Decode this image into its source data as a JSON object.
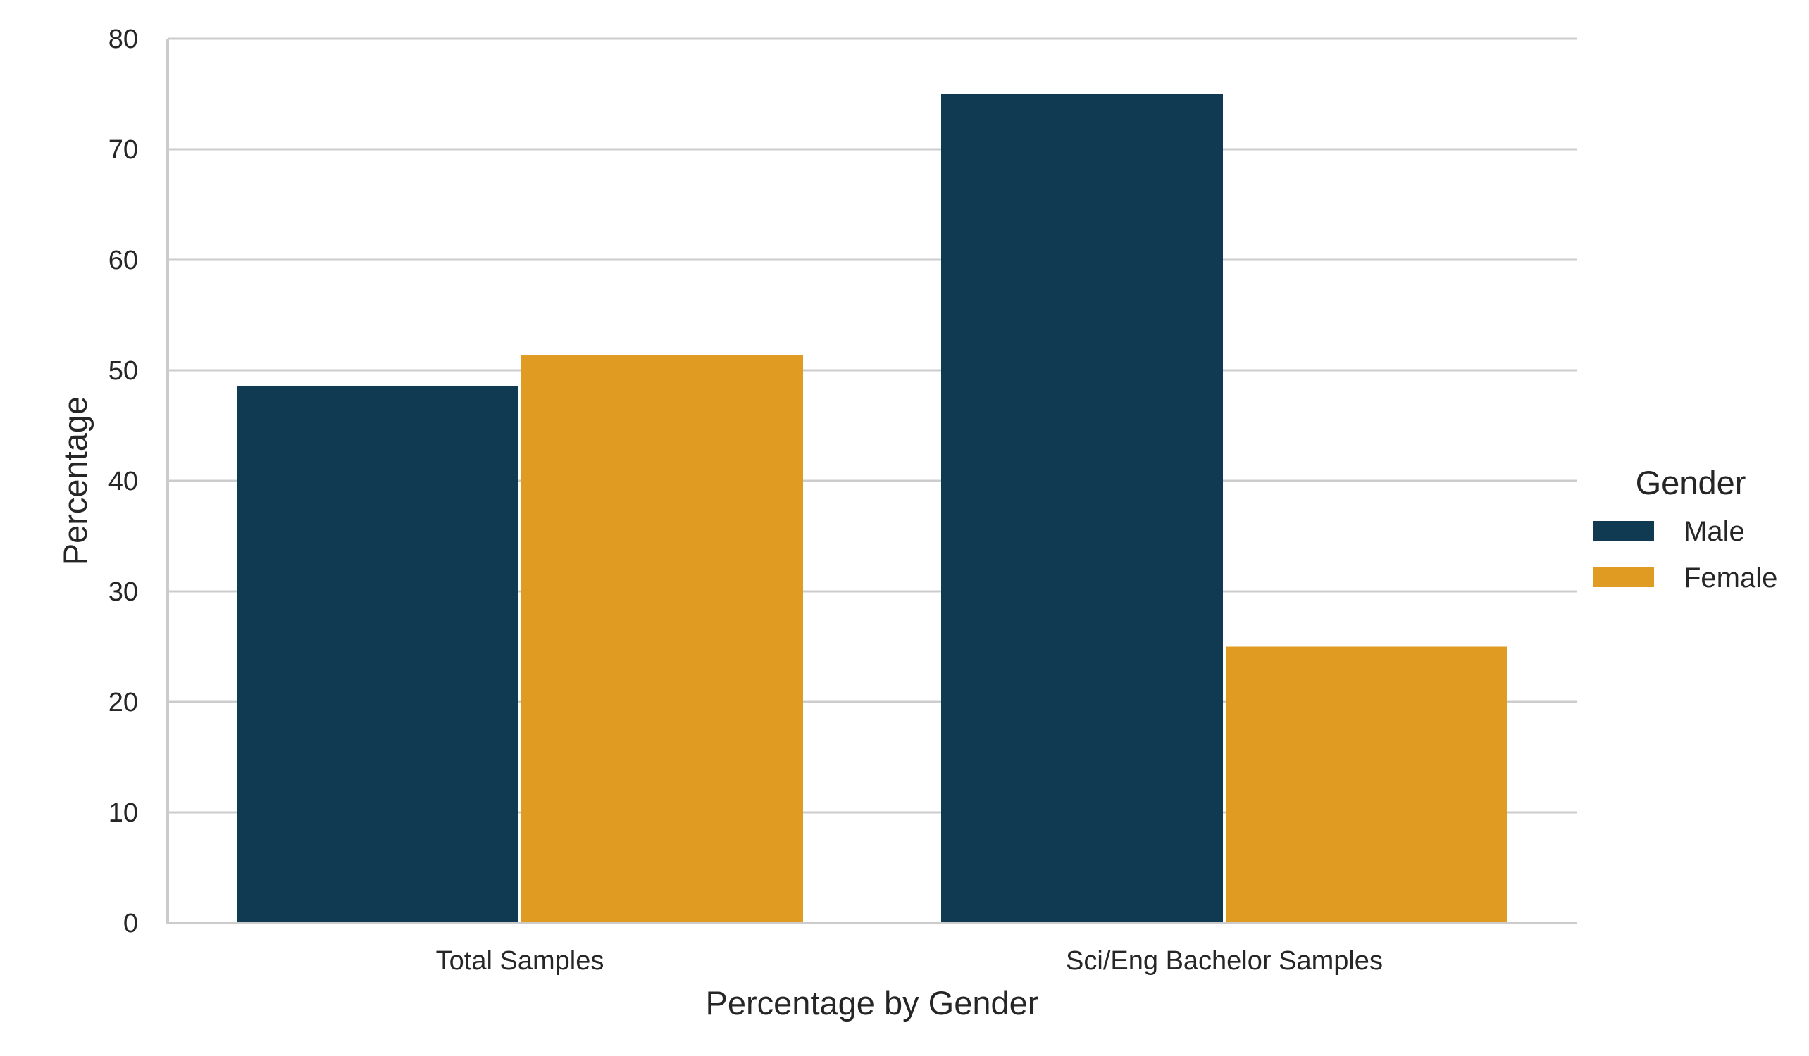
{
  "chart_data": {
    "type": "bar",
    "title": "",
    "xlabel": "Percentage by Gender",
    "ylabel": "Percentage",
    "categories": [
      "Total Samples",
      "Sci/Eng Bachelor Samples"
    ],
    "series": [
      {
        "name": "Male",
        "values": [
          48.6,
          75.0
        ],
        "color": "#0f3a52"
      },
      {
        "name": "Female",
        "values": [
          51.4,
          25.0
        ],
        "color": "#e09c22"
      }
    ],
    "ylim": [
      0,
      80
    ],
    "yticks": [
      0,
      10,
      20,
      30,
      40,
      50,
      60,
      70,
      80
    ],
    "grid": "horizontal",
    "legend": {
      "title": "Gender",
      "placement": "right"
    }
  }
}
